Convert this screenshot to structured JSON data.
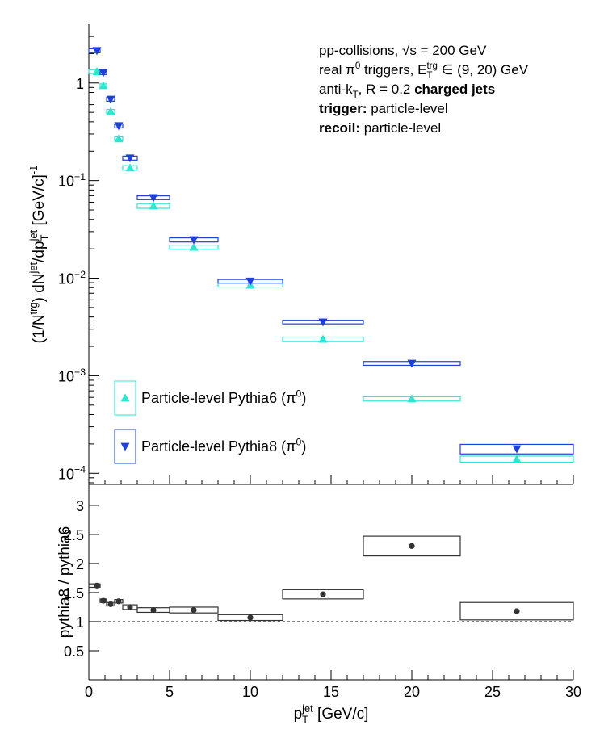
{
  "chart_data": [
    {
      "type": "errorbox",
      "log_y": true,
      "ylabel": [
        {
          "t": "(1/N"
        },
        {
          "sup": "trg"
        },
        {
          "t": ") dN"
        },
        {
          "sup": "jet"
        },
        {
          "t": "/dp"
        },
        {
          "sub": "T"
        },
        {
          "sup": "jet"
        },
        {
          "t": " [GeV/c]"
        },
        {
          "sup": "-1"
        }
      ],
      "annotations": [
        [
          {
            "t": "pp-collisions, √s = 200 GeV"
          }
        ],
        [
          {
            "t": "real π"
          },
          {
            "sup": "0"
          },
          {
            "t": " triggers, E"
          },
          {
            "sub": "T"
          },
          {
            "sup": "trg"
          },
          {
            "t": " ∈ (9, 20) GeV"
          }
        ],
        [
          {
            "t": "anti-k"
          },
          {
            "sub": "T"
          },
          {
            "t": ", R = 0.2 "
          },
          {
            "b": "charged jets"
          }
        ],
        [
          {
            "b": "trigger:"
          },
          {
            "t": " particle-level"
          }
        ],
        [
          {
            "b": "recoil:"
          },
          {
            "t": " particle-level"
          }
        ]
      ],
      "x": [
        0.5,
        0.9,
        1.35,
        1.85,
        2.55,
        4,
        6.5,
        10,
        14.5,
        20,
        26.5
      ],
      "bins": [
        0,
        0.7,
        1.1,
        1.6,
        2.1,
        3,
        5,
        8,
        12,
        17,
        23,
        30
      ],
      "series": [
        {
          "name": [
            {
              "t": "Particle-level Pythia6 (π"
            },
            {
              "sup": "0"
            },
            {
              "t": ")"
            }
          ],
          "color": "#2ee6cf",
          "marker": "triangle-up",
          "values": [
            1.31,
            0.94,
            0.51,
            0.268,
            0.135,
            0.055,
            0.0208,
            0.0085,
            0.00237,
            0.00058,
            0.00014
          ],
          "errors": [
            0.06,
            0.04,
            0.025,
            0.013,
            0.007,
            0.003,
            0.001,
            0.0004,
            0.00012,
            3e-05,
            1e-05
          ]
        },
        {
          "name": [
            {
              "t": "Particle-level Pythia8 (π"
            },
            {
              "sup": "0"
            },
            {
              "t": ")"
            }
          ],
          "color": "#1f40d8",
          "marker": "triangle-down",
          "values": [
            2.14,
            1.28,
            0.68,
            0.364,
            0.17,
            0.0667,
            0.0247,
            0.0093,
            0.00355,
            0.00134,
            0.000178
          ],
          "errors": [
            0.1,
            0.06,
            0.03,
            0.017,
            0.008,
            0.003,
            0.0012,
            0.0004,
            0.00015,
            6e-05,
            2e-05
          ]
        }
      ],
      "xlim": [
        0,
        30
      ],
      "xticks": [
        0,
        5,
        10,
        15,
        20,
        25,
        30
      ],
      "ylim": [
        7.7e-05,
        4
      ],
      "yticks": [
        {
          "value": 0.0001,
          "label": [
            {
              "t": "10"
            },
            {
              "sup": "−4"
            }
          ]
        },
        {
          "value": 0.001,
          "label": [
            {
              "t": "10"
            },
            {
              "sup": "−3"
            }
          ]
        },
        {
          "value": 0.01,
          "label": [
            {
              "t": "10"
            },
            {
              "sup": "−2"
            }
          ]
        },
        {
          "value": 0.1,
          "label": [
            {
              "t": "10"
            },
            {
              "sup": "−1"
            }
          ]
        },
        1
      ],
      "legend": "bottom-left"
    },
    {
      "type": "errorbox",
      "log_y": false,
      "ylabel": [
        {
          "t": "pythia8 / pythia6"
        }
      ],
      "xlabel": [
        {
          "t": "p"
        },
        {
          "sub": "T"
        },
        {
          "sup": "jet"
        },
        {
          "t": " [GeV/c]"
        }
      ],
      "x": [
        0.5,
        0.9,
        1.35,
        1.85,
        2.55,
        4,
        6.5,
        10,
        14.5,
        20,
        26.5
      ],
      "bins": [
        0,
        0.7,
        1.1,
        1.6,
        2.1,
        3,
        5,
        8,
        12,
        17,
        23,
        30
      ],
      "series": [
        {
          "color": "#333333",
          "marker": "circle",
          "values": [
            1.62,
            1.36,
            1.3,
            1.35,
            1.25,
            1.2,
            1.2,
            1.07,
            1.47,
            2.3,
            1.18
          ],
          "errors": [
            0.03,
            0.03,
            0.03,
            0.03,
            0.04,
            0.04,
            0.05,
            0.05,
            0.08,
            0.17,
            0.15
          ]
        }
      ],
      "ref_line": 1,
      "xlim": [
        0,
        30
      ],
      "xticks": [
        0,
        5,
        10,
        15,
        20,
        25,
        30
      ],
      "ylim": [
        0,
        3.36
      ],
      "yticks": [
        0.5,
        1,
        1.5,
        2,
        2.5,
        3
      ]
    }
  ]
}
